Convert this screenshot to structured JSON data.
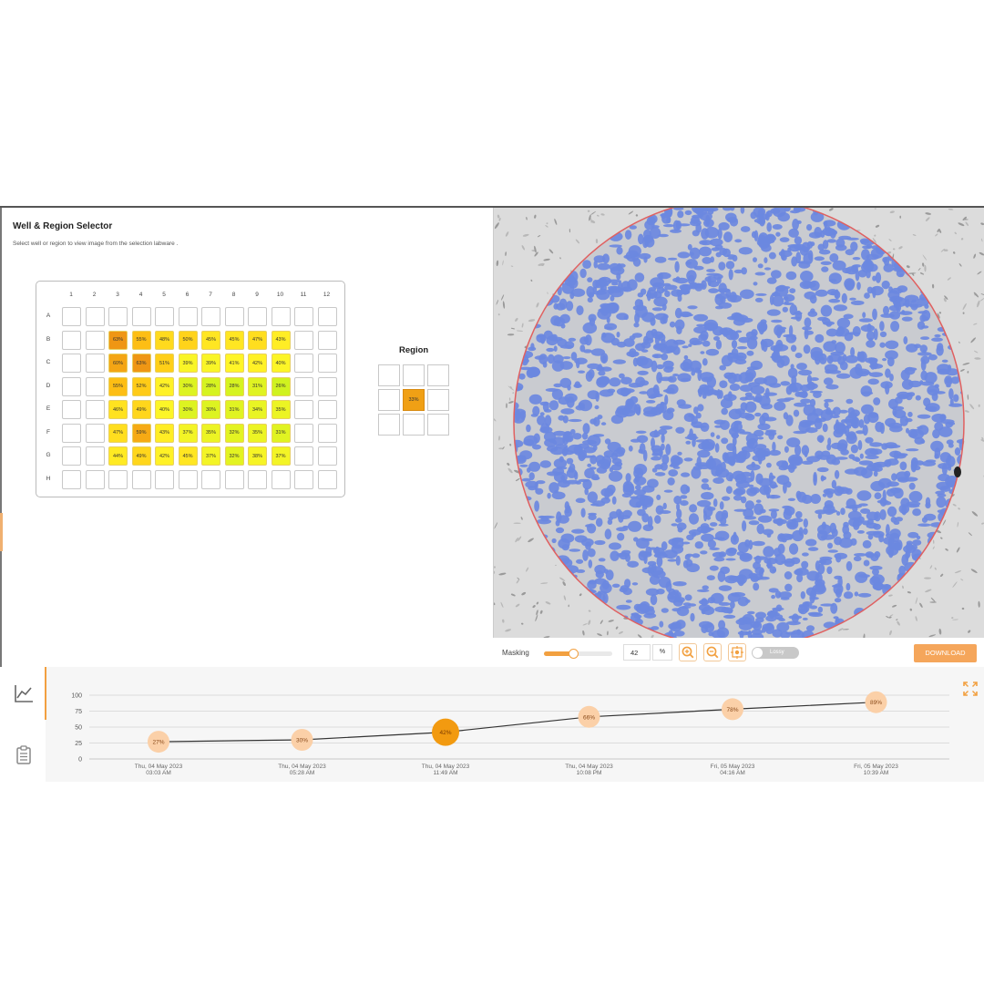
{
  "selector": {
    "title": "Well & Region Selector",
    "subtitle": "Select well or region to view image from the selection labware ."
  },
  "plate": {
    "columns": [
      "1",
      "2",
      "3",
      "4",
      "5",
      "6",
      "7",
      "8",
      "9",
      "10",
      "11",
      "12"
    ],
    "rows": [
      "A",
      "B",
      "C",
      "D",
      "E",
      "F",
      "G",
      "H"
    ],
    "values": [
      [
        null,
        null,
        null,
        null,
        null,
        null,
        null,
        null,
        null,
        null,
        null,
        null
      ],
      [
        null,
        null,
        "63%",
        "55%",
        "48%",
        "50%",
        "45%",
        "45%",
        "47%",
        "43%",
        null,
        null
      ],
      [
        null,
        null,
        "60%",
        "63%",
        "51%",
        "39%",
        "39%",
        "41%",
        "42%",
        "40%",
        null,
        null
      ],
      [
        null,
        null,
        "55%",
        "52%",
        "42%",
        "30%",
        "28%",
        "28%",
        "31%",
        "26%",
        null,
        null
      ],
      [
        null,
        null,
        "46%",
        "49%",
        "40%",
        "30%",
        "30%",
        "31%",
        "34%",
        "35%",
        null,
        null
      ],
      [
        null,
        null,
        "47%",
        "59%",
        "43%",
        "37%",
        "35%",
        "32%",
        "35%",
        "31%",
        null,
        null
      ],
      [
        null,
        null,
        "44%",
        "49%",
        "42%",
        "45%",
        "37%",
        "32%",
        "38%",
        "37%",
        null,
        null
      ],
      [
        null,
        null,
        null,
        null,
        null,
        null,
        null,
        null,
        null,
        null,
        null,
        null
      ]
    ]
  },
  "region": {
    "title": "Region",
    "selected_value": "33%"
  },
  "toolbar": {
    "masking_label": "Masking",
    "masking_value": "42",
    "masking_unit": "%",
    "masking_level": 0.42,
    "lossy_label": "Lossy",
    "download_label": "DOWNLOAD"
  },
  "colors": {
    "accent": "#f2a040",
    "mask_blue": "#6b88e0",
    "well_circle": "#e06060"
  },
  "icons": {
    "rail": [
      "line-chart-icon",
      "clipboard-icon"
    ],
    "toolbar": [
      "zoom-in-icon",
      "zoom-out-icon",
      "fit-to-screen-icon"
    ],
    "expand": "expand-icon"
  },
  "chart_data": {
    "type": "line",
    "y_ticks": [
      "100",
      "75",
      "50",
      "25",
      "0"
    ],
    "ylim": [
      0,
      100
    ],
    "x": [
      [
        "Thu, 04 May 2023",
        "03:03 AM"
      ],
      [
        "Thu, 04 May 2023",
        "05:28 AM"
      ],
      [
        "Thu, 04 May 2023",
        "11:49 AM"
      ],
      [
        "Thu, 04 May 2023",
        "10:08 PM"
      ],
      [
        "Fri, 05 May 2023",
        "04:16 AM"
      ],
      [
        "Fri, 05 May 2023",
        "10:39 AM"
      ]
    ],
    "values": [
      27,
      30,
      42,
      66,
      78,
      89
    ],
    "labels": [
      "27%",
      "30%",
      "42%",
      "66%",
      "78%",
      "89%"
    ],
    "selected_index": 2,
    "grid": true
  }
}
